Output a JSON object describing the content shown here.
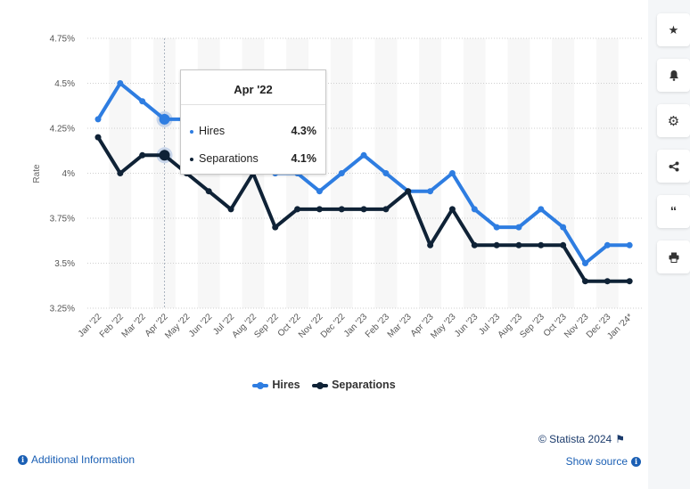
{
  "chart_data": {
    "type": "line",
    "categories": [
      "Jan '22",
      "Feb '22",
      "Mar '22",
      "Apr '22",
      "May '22",
      "Jun '22",
      "Jul '22",
      "Aug '22",
      "Sep '22",
      "Oct '22",
      "Nov '22",
      "Dec '22",
      "Jan '23",
      "Feb '23",
      "Mar '23",
      "Apr '23",
      "May '23",
      "Jun '23",
      "Jul '23",
      "Aug '23",
      "Sep '23",
      "Oct '23",
      "Nov '23",
      "Dec '23",
      "Jan '24*"
    ],
    "series": [
      {
        "name": "Hires",
        "color": "#2e7de1",
        "values": [
          4.3,
          4.5,
          4.4,
          4.3,
          4.3,
          4.3,
          4.2,
          4.1,
          4.0,
          4.0,
          3.9,
          4.0,
          4.1,
          4.0,
          3.9,
          3.9,
          4.0,
          3.8,
          3.7,
          3.7,
          3.8,
          3.7,
          3.5,
          3.6,
          3.6
        ]
      },
      {
        "name": "Separations",
        "color": "#0f2236",
        "values": [
          4.2,
          4.0,
          4.1,
          4.1,
          4.0,
          3.9,
          3.8,
          4.0,
          3.7,
          3.8,
          3.8,
          3.8,
          3.8,
          3.8,
          3.9,
          3.6,
          3.8,
          3.6,
          3.6,
          3.6,
          3.6,
          3.6,
          3.4,
          3.4,
          3.4
        ]
      }
    ],
    "yticks": [
      3.25,
      3.5,
      3.75,
      4.0,
      4.25,
      4.5,
      4.75
    ],
    "ytick_labels": [
      "3.25%",
      "3.5%",
      "3.75%",
      "4%",
      "4.25%",
      "4.5%",
      "4.75%"
    ],
    "ylim": [
      3.25,
      4.75
    ],
    "ylabel": "Rate",
    "xlabel": "",
    "grid": true,
    "legend_position": "bottom",
    "highlighted_category": "Apr '22"
  },
  "tooltip": {
    "title": "Apr '22",
    "rows": [
      {
        "label": "Hires",
        "value": "4.3%",
        "color": "#2e7de1"
      },
      {
        "label": "Separations",
        "value": "4.1%",
        "color": "#0f2236"
      }
    ]
  },
  "legend": {
    "items": [
      {
        "label": "Hires",
        "color": "#2e7de1"
      },
      {
        "label": "Separations",
        "color": "#0f2236"
      }
    ]
  },
  "footer": {
    "copyright": "© Statista 2024",
    "show_source": "Show source",
    "additional_info": "Additional Information"
  },
  "sidebar": {
    "icons": [
      "star-icon",
      "bell-icon",
      "gear-icon",
      "share-icon",
      "quote-icon",
      "print-icon"
    ]
  }
}
